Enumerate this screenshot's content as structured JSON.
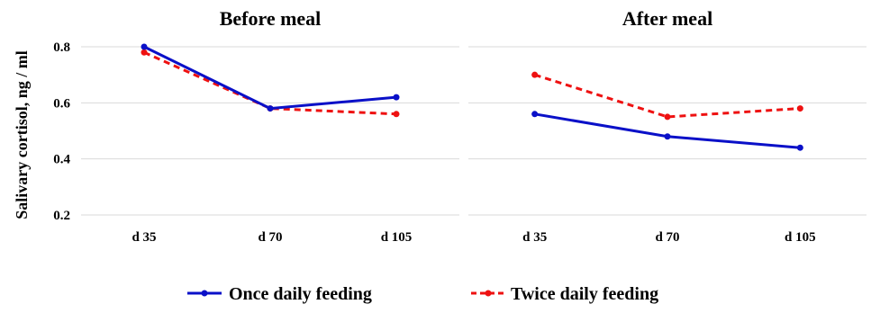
{
  "colors": {
    "once": "#0a10c8",
    "twice": "#ee1111",
    "grid": "#d9d9d9"
  },
  "legend_position": "bottom-center",
  "chart_data": [
    {
      "type": "line",
      "title": "Before meal",
      "ylabel": "Salivary cortisol, ng / ml",
      "ylim": [
        0.2,
        0.8
      ],
      "yticks": [
        "0.2",
        "0.4",
        "0.6",
        "0.8"
      ],
      "grid": true,
      "categories": [
        "d 35",
        "d 70",
        "d 105"
      ],
      "series": [
        {
          "name": "Once daily feeding",
          "values": [
            0.8,
            0.58,
            0.62
          ]
        },
        {
          "name": "Twice daily feeding",
          "values": [
            0.78,
            0.58,
            0.56
          ]
        }
      ]
    },
    {
      "type": "line",
      "title": "After meal",
      "ylim": [
        0.2,
        0.8
      ],
      "grid": true,
      "categories": [
        "d 35",
        "d 70",
        "d 105"
      ],
      "series": [
        {
          "name": "Once daily feeding",
          "values": [
            0.56,
            0.48,
            0.44
          ]
        },
        {
          "name": "Twice daily feeding",
          "values": [
            0.7,
            0.55,
            0.58
          ]
        }
      ]
    }
  ],
  "legend": [
    {
      "label": "Once daily feeding",
      "style": "solid"
    },
    {
      "label": "Twice daily feeding",
      "style": "dashed"
    }
  ]
}
